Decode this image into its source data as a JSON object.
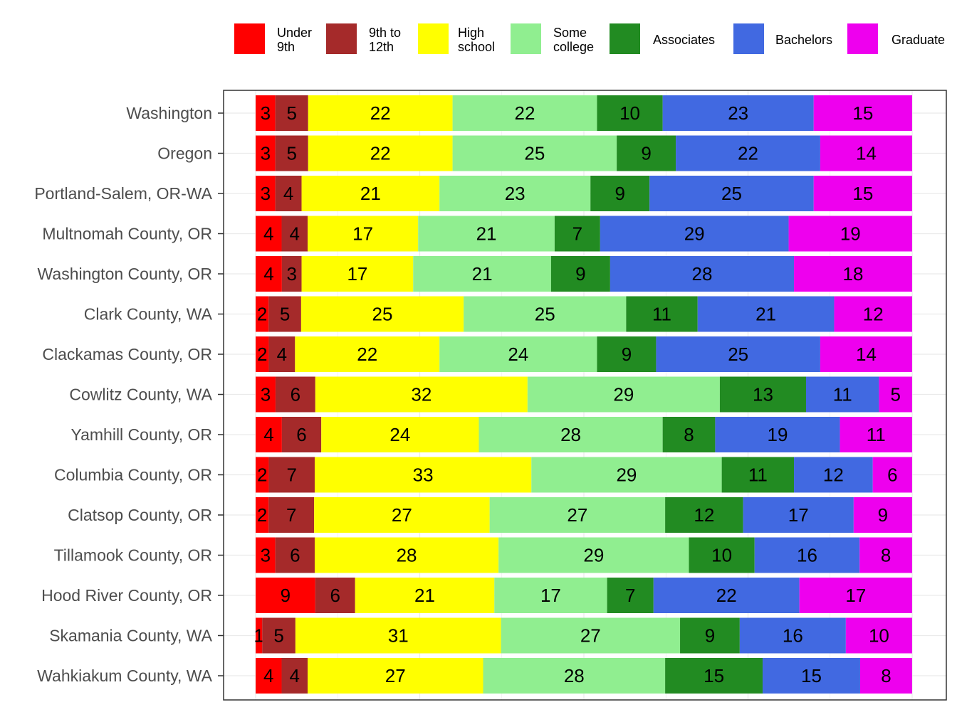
{
  "chart_data": {
    "type": "bar",
    "orientation": "horizontal",
    "stacked": true,
    "normalized": true,
    "title": "",
    "xlabel": "",
    "ylabel": "",
    "xlim": [
      0,
      100
    ],
    "grid": true,
    "legend_position": "top",
    "categories": [
      "Washington",
      "Oregon",
      "Portland-Salem, OR-WA",
      "Multnomah County, OR",
      "Washington County, OR",
      "Clark County, WA",
      "Clackamas County, OR",
      "Cowlitz County, WA",
      "Yamhill County, OR",
      "Columbia County, OR",
      "Clatsop County, OR",
      "Tillamook County, OR",
      "Hood River County, OR",
      "Skamania County, WA",
      "Wahkiakum County, WA"
    ],
    "series": [
      {
        "name": "Under 9th",
        "legend_lines": [
          "Under",
          "9th"
        ],
        "color": "#ff0000",
        "values": [
          3,
          3,
          3,
          4,
          4,
          2,
          2,
          3,
          4,
          2,
          2,
          3,
          9,
          1,
          4
        ]
      },
      {
        "name": "9th to 12th",
        "legend_lines": [
          "9th to",
          "12th"
        ],
        "color": "#a52a2a",
        "values": [
          5,
          5,
          4,
          4,
          3,
          5,
          4,
          6,
          6,
          7,
          7,
          6,
          6,
          5,
          4
        ]
      },
      {
        "name": "High school",
        "legend_lines": [
          "High",
          "school"
        ],
        "color": "#ffff00",
        "values": [
          22,
          22,
          21,
          17,
          17,
          25,
          22,
          32,
          24,
          33,
          27,
          28,
          21,
          31,
          27
        ]
      },
      {
        "name": "Some college",
        "legend_lines": [
          "Some",
          "college"
        ],
        "color": "#90ee90",
        "values": [
          22,
          25,
          23,
          21,
          21,
          25,
          24,
          29,
          28,
          29,
          27,
          29,
          17,
          27,
          28
        ]
      },
      {
        "name": "Associates",
        "legend_lines": [
          "Associates"
        ],
        "color": "#228b22",
        "values": [
          10,
          9,
          9,
          7,
          9,
          11,
          9,
          13,
          8,
          11,
          12,
          10,
          7,
          9,
          15
        ]
      },
      {
        "name": "Bachelors",
        "legend_lines": [
          "Bachelors"
        ],
        "color": "#4169e1",
        "values": [
          23,
          22,
          25,
          29,
          28,
          21,
          25,
          11,
          19,
          12,
          17,
          16,
          22,
          16,
          15
        ]
      },
      {
        "name": "Graduate",
        "legend_lines": [
          "Graduate"
        ],
        "color": "#ee00ee",
        "values": [
          15,
          14,
          15,
          19,
          18,
          12,
          14,
          5,
          11,
          6,
          9,
          8,
          17,
          10,
          8
        ]
      }
    ]
  }
}
